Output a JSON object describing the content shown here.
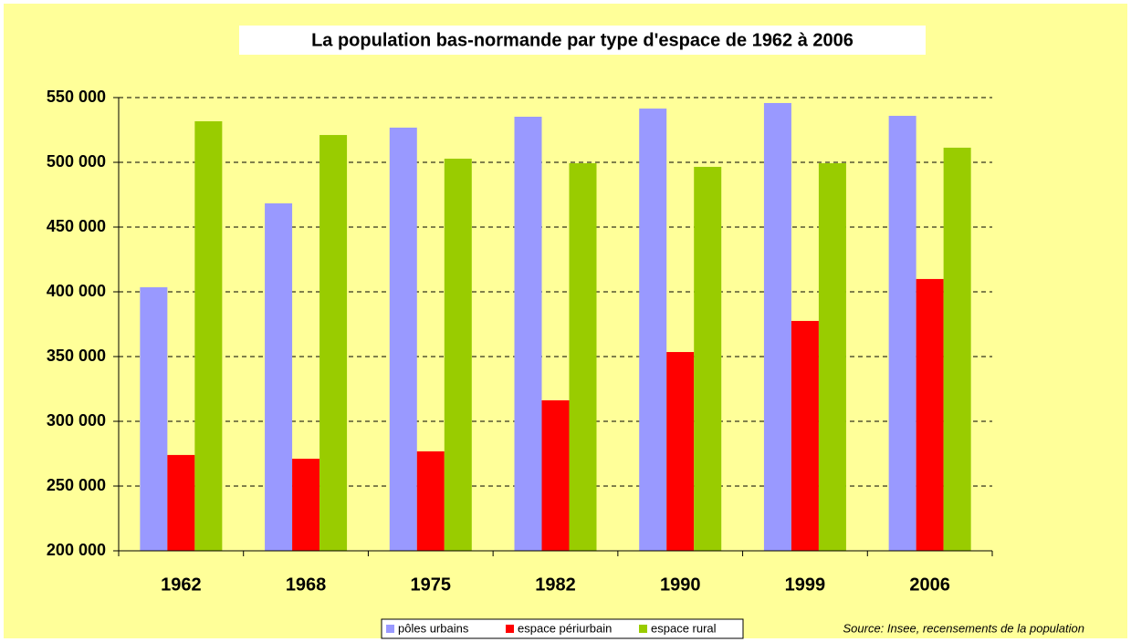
{
  "chart_data": {
    "type": "bar",
    "title": "La population bas-normande par type d'espace de 1962 à 2006",
    "categories": [
      "1962",
      "1968",
      "1975",
      "1982",
      "1990",
      "1999",
      "2006"
    ],
    "series": [
      {
        "name": "pôles urbains",
        "color": "#9999ff",
        "values": [
          403500,
          468300,
          526800,
          535200,
          541500,
          545800,
          535900
        ]
      },
      {
        "name": "espace périurbain",
        "color": "#ff0000",
        "values": [
          274000,
          271100,
          276800,
          316200,
          353500,
          377500,
          409900
        ]
      },
      {
        "name": "espace rural",
        "color": "#99cc00",
        "values": [
          531700,
          521100,
          502800,
          499300,
          496500,
          499300,
          511300
        ]
      }
    ],
    "ylim": [
      200000,
      550000
    ],
    "yticks": [
      {
        "value": 200000,
        "label": "200 000"
      },
      {
        "value": 250000,
        "label": "250 000"
      },
      {
        "value": 300000,
        "label": "300 000"
      },
      {
        "value": 350000,
        "label": "350 000"
      },
      {
        "value": 400000,
        "label": "400 000"
      },
      {
        "value": 450000,
        "label": "450 000"
      },
      {
        "value": 500000,
        "label": "500 000"
      },
      {
        "value": 550000,
        "label": "550 000"
      }
    ],
    "grid": true,
    "legend": "bottom",
    "annotation": "Source: Insee, recensements de la population"
  }
}
